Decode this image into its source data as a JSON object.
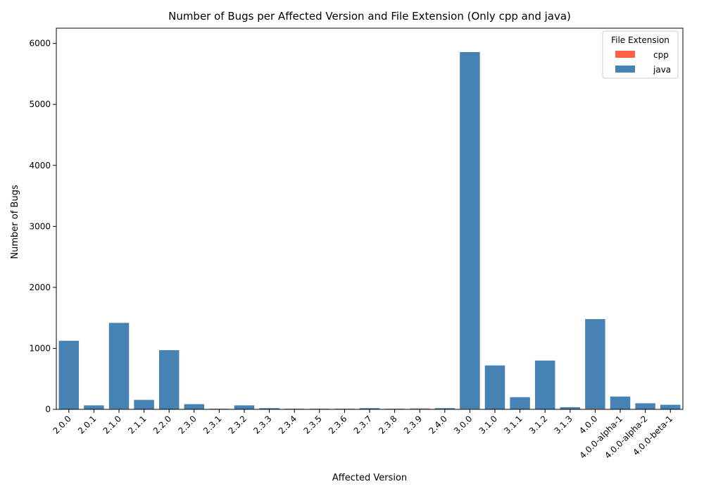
{
  "chart_data": {
    "type": "bar",
    "title": "Number of Bugs per Affected Version and File Extension (Only cpp and java)",
    "xlabel": "Affected Version",
    "ylabel": "Number of Bugs",
    "ylim": [
      0,
      6250
    ],
    "yticks": [
      0,
      1000,
      2000,
      3000,
      4000,
      5000,
      6000
    ],
    "stacked": true,
    "legend": {
      "title": "File Extension",
      "position": "top-right"
    },
    "categories": [
      "2.0.0",
      "2.0.1",
      "2.1.0",
      "2.1.1",
      "2.2.0",
      "2.3.0",
      "2.3.1",
      "2.3.2",
      "2.3.3",
      "2.3.4",
      "2.3.5",
      "2.3.6",
      "2.3.7",
      "2.3.8",
      "2.3.9",
      "2.4.0",
      "3.0.0",
      "3.1.0",
      "3.1.1",
      "3.1.2",
      "3.1.3",
      "4.0.0",
      "4.0.0-alpha-1",
      "4.0.0-alpha-2",
      "4.0.0-beta-1"
    ],
    "series": [
      {
        "name": "cpp",
        "color": "#ff6347",
        "values": [
          0,
          0,
          8,
          0,
          5,
          0,
          0,
          0,
          0,
          0,
          0,
          0,
          0,
          0,
          10,
          0,
          8,
          0,
          0,
          0,
          0,
          10,
          0,
          0,
          0
        ]
      },
      {
        "name": "java",
        "color": "#4682b4",
        "values": [
          1125,
          65,
          1410,
          155,
          965,
          85,
          10,
          65,
          20,
          10,
          10,
          10,
          20,
          10,
          5,
          20,
          5850,
          720,
          200,
          800,
          35,
          1470,
          210,
          100,
          75
        ]
      }
    ]
  }
}
